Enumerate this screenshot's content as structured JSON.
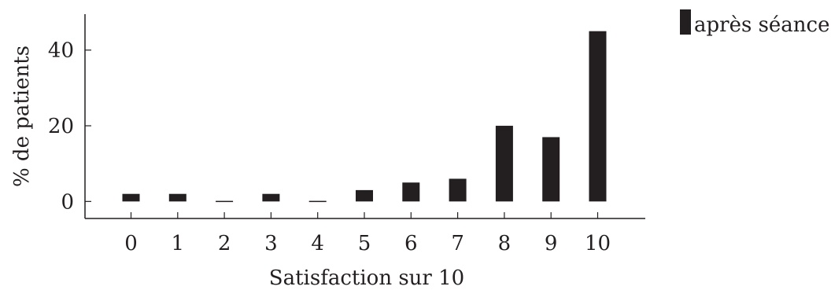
{
  "chart_data": {
    "type": "bar",
    "categories": [
      "0",
      "1",
      "2",
      "3",
      "4",
      "5",
      "6",
      "7",
      "8",
      "9",
      "10"
    ],
    "series": [
      {
        "name": "après séance",
        "values": [
          2,
          2,
          0,
          2,
          0,
          3,
          5,
          6,
          20,
          17,
          45
        ],
        "color": "#231f20"
      }
    ],
    "xlabel": "Satisfaction sur 10",
    "ylabel": "% de patients",
    "ylim": [
      -4.5,
      49.5
    ],
    "yticks": [
      0,
      20,
      40
    ],
    "grid": false,
    "legend_position": "top-right outside"
  }
}
